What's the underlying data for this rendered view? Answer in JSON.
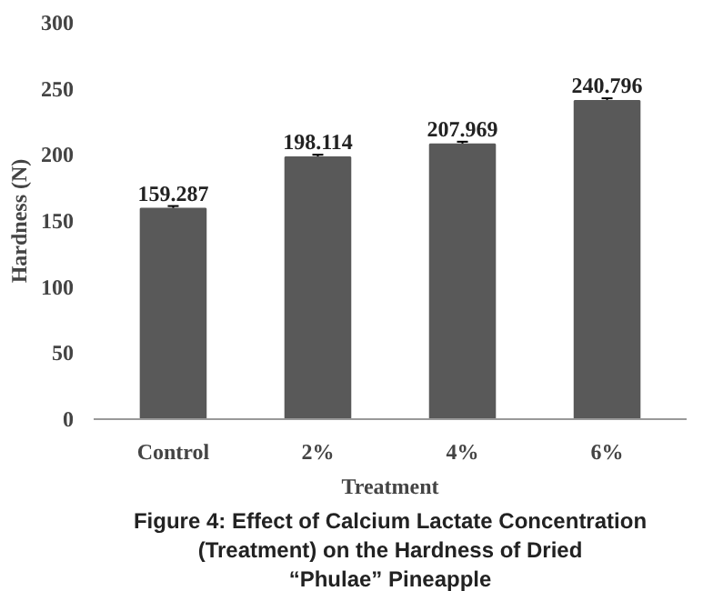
{
  "chart_data": {
    "type": "bar",
    "xlabel": "Treatment",
    "ylabel": "Hardness (N)",
    "categories": [
      "Control",
      "2%",
      "4%",
      "6%"
    ],
    "values": [
      159.287,
      198.114,
      207.969,
      240.796
    ],
    "errors": [
      2,
      2,
      2,
      2
    ],
    "color": "#595959",
    "ylim": [
      0,
      300
    ],
    "yticks": [
      0,
      50,
      100,
      150,
      200,
      250,
      300
    ],
    "data_labels": true,
    "annotations": [
      "Figure 4: Effect of Calcium Lactate Concentration\n(Treatment) on the Hardness of Dried\n“Phulae” Pineapple"
    ]
  }
}
